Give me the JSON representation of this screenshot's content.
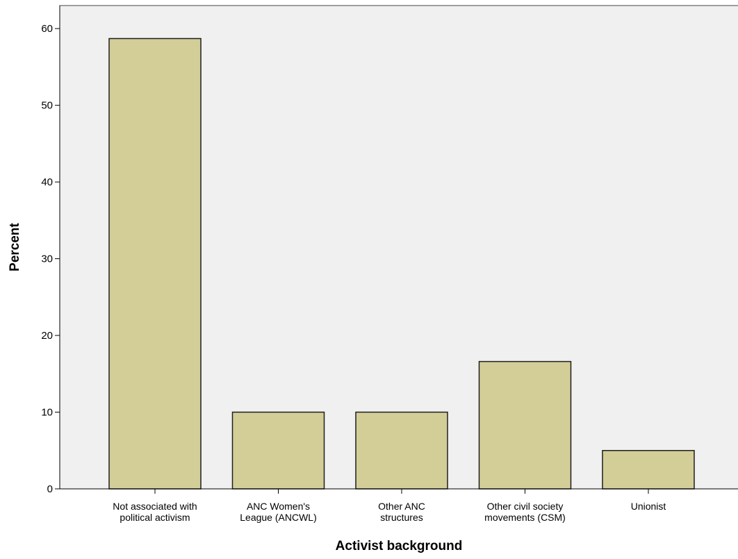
{
  "colors": {
    "plot_background": "#f0f0f0",
    "bar_fill": "#d3ce97",
    "bar_stroke": "#1e1e1e"
  },
  "chart_data": {
    "type": "bar",
    "categories": [
      [
        "Not associated with",
        "political activism"
      ],
      [
        "ANC Women's",
        "League (ANCWL)"
      ],
      [
        "Other ANC",
        "structures"
      ],
      [
        "Other civil society",
        "movements (CSM)"
      ],
      [
        "Unionist"
      ]
    ],
    "values": [
      58.7,
      10.0,
      10.0,
      16.6,
      5.0
    ],
    "xlabel": "Activist background",
    "ylabel": "Percent",
    "ylim": [
      0,
      63
    ],
    "yticks": [
      0,
      10,
      20,
      30,
      40,
      50,
      60
    ],
    "grid": false,
    "legend": "none"
  }
}
